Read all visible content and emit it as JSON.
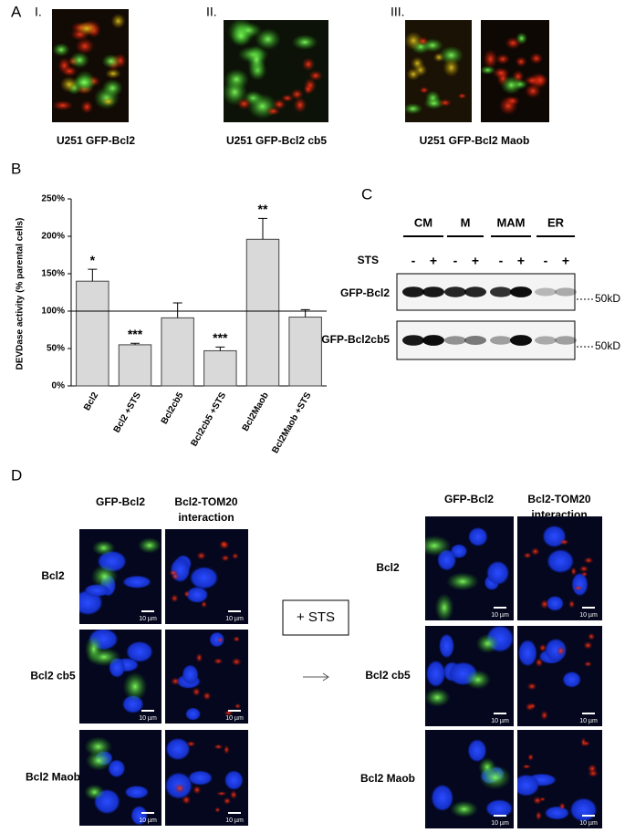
{
  "panel_labels": [
    "A",
    "B",
    "C",
    "D"
  ],
  "panel_a": {
    "numerals": [
      "I.",
      "II.",
      "III."
    ],
    "captions": [
      "U251 GFP-Bcl2",
      "U251 GFP-Bcl2 cb5",
      "U251 GFP-Bcl2 Maob"
    ]
  },
  "chart_data": {
    "type": "bar",
    "ylabel": "DEVDase activity (% parental cells)",
    "categories": [
      "Bcl2",
      "Bcl2 +STS",
      "Bcl2cb5",
      "Bcl2cb5 +STS",
      "Bcl2Maob",
      "Bcl2Maob +STS"
    ],
    "values": [
      140,
      55,
      91,
      47,
      196,
      92
    ],
    "errors": [
      16,
      2,
      20,
      5,
      28,
      10
    ],
    "annotations": [
      "*",
      "***",
      null,
      "***",
      "**",
      null
    ],
    "color": "#d9d9d9",
    "ylim": [
      0,
      250
    ],
    "yticks": [
      {
        "value": 0,
        "label": "0%"
      },
      {
        "value": 50,
        "label": "50%"
      },
      {
        "value": 100,
        "label": "100%"
      },
      {
        "value": 150,
        "label": "150%"
      },
      {
        "value": 200,
        "label": "200%"
      },
      {
        "value": 250,
        "label": "250%"
      }
    ],
    "reference_line": 100
  },
  "panel_c": {
    "groups": [
      "CM",
      "M",
      "MAM",
      "ER"
    ],
    "treatment": "STS",
    "minus": "-",
    "plus": "+",
    "rows": [
      "GFP-Bcl2",
      "GFP-Bcl2cb5"
    ],
    "size_marker": "50kD"
  },
  "panel_d": {
    "column_headers": [
      [
        "GFP-Bcl2"
      ],
      [
        "Bcl2-TOM20",
        "interaction"
      ]
    ],
    "rows": [
      "Bcl2",
      "Bcl2 cb5",
      "Bcl2 Maob"
    ],
    "treatment": "+ STS",
    "scale_bar": "10 µm"
  }
}
